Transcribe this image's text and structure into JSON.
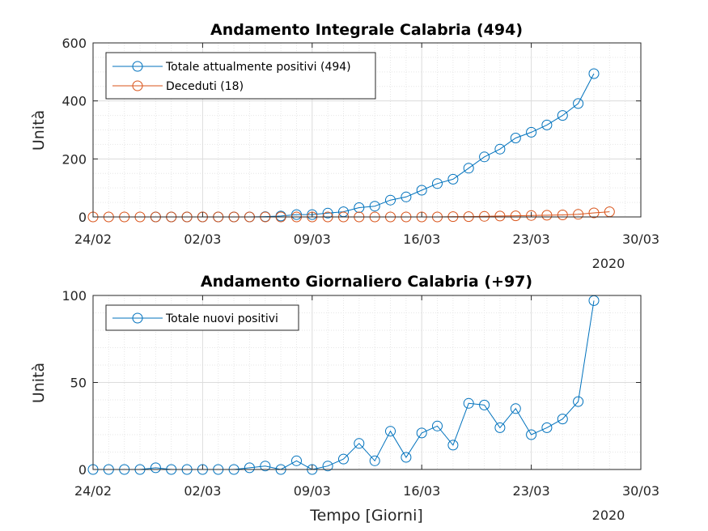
{
  "chart_data": [
    {
      "type": "line",
      "title": "Andamento Integrale Calabria (494)",
      "ylabel": "Unità",
      "xlabel": "",
      "x_ticks": [
        "24/02",
        "02/03",
        "09/03",
        "16/03",
        "23/03",
        "30/03"
      ],
      "x_year": "2020",
      "y_ticks": [
        "0",
        "200",
        "400",
        "600"
      ],
      "ylim": [
        0,
        600
      ],
      "grid": true,
      "minor_grid": true,
      "legend_position": "top-left",
      "x_day_start": 0,
      "series": [
        {
          "name": "Totale attualmente positivi (494)",
          "color": "#0072BD",
          "start_day": 4,
          "values": [
            0,
            0,
            0,
            0,
            0,
            0,
            0,
            1,
            3,
            8,
            8,
            13,
            18,
            32,
            37,
            58,
            69,
            92,
            115,
            130,
            168,
            207,
            234,
            272,
            292,
            317,
            350,
            391,
            494
          ]
        },
        {
          "name": "Deceduti (18)",
          "color": "#D95319",
          "start_day": 0,
          "values": [
            0,
            0,
            0,
            0,
            0,
            0,
            0,
            0,
            0,
            0,
            0,
            0,
            0,
            0,
            0,
            0,
            0,
            0,
            0,
            0,
            0,
            0,
            0,
            1,
            1,
            2,
            3,
            4,
            5,
            6,
            7,
            9,
            14,
            18
          ]
        }
      ]
    },
    {
      "type": "line",
      "title": "Andamento Giornaliero Calabria (+97)",
      "ylabel": "Unità",
      "xlabel": "Tempo [Giorni]",
      "x_ticks": [
        "24/02",
        "02/03",
        "09/03",
        "16/03",
        "23/03",
        "30/03"
      ],
      "x_year": "2020",
      "y_ticks": [
        "0",
        "50",
        "100"
      ],
      "ylim": [
        0,
        100
      ],
      "grid": true,
      "minor_grid": true,
      "legend_position": "top-left",
      "series": [
        {
          "name": "Totale nuovi positivi",
          "color": "#0072BD",
          "start_day": 0,
          "values": [
            0,
            0,
            0,
            0,
            1,
            0,
            0,
            0,
            0,
            0,
            1,
            2,
            0,
            5,
            0,
            2,
            6,
            15,
            5,
            22,
            7,
            21,
            25,
            14,
            38,
            37,
            24,
            35,
            20,
            24,
            29,
            39,
            97
          ]
        }
      ]
    }
  ]
}
